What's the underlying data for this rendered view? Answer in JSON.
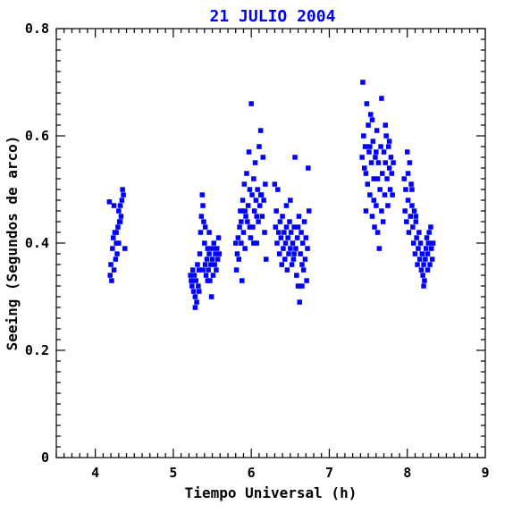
{
  "chart_data": {
    "type": "scatter",
    "title": "21 JULIO 2004",
    "xlabel": "Tiempo Universal (h)",
    "ylabel": "Seeing (Segundos de arco)",
    "xlim": [
      3.5,
      9
    ],
    "ylim": [
      0,
      0.8
    ],
    "x_ticks": [
      {
        "value": 4,
        "label": "4"
      },
      {
        "value": 5,
        "label": "5"
      },
      {
        "value": 6,
        "label": "6"
      },
      {
        "value": 7,
        "label": "7"
      },
      {
        "value": 8,
        "label": "8"
      },
      {
        "value": 9,
        "label": "9"
      }
    ],
    "y_ticks": [
      {
        "value": 0,
        "label": "0"
      },
      {
        "value": 0.2,
        "label": "0.2"
      },
      {
        "value": 0.4,
        "label": "0.4"
      },
      {
        "value": 0.6,
        "label": "0.6"
      },
      {
        "value": 0.8,
        "label": "0.8"
      }
    ],
    "grid": false,
    "marker_color": "#0000ff",
    "title_color": "#0000ff",
    "points": [
      [
        4.18,
        0.477
      ],
      [
        4.19,
        0.34
      ],
      [
        4.2,
        0.36
      ],
      [
        4.21,
        0.33
      ],
      [
        4.22,
        0.39
      ],
      [
        4.23,
        0.41
      ],
      [
        4.24,
        0.35
      ],
      [
        4.25,
        0.42
      ],
      [
        4.26,
        0.37
      ],
      [
        4.27,
        0.4
      ],
      [
        4.28,
        0.38
      ],
      [
        4.29,
        0.43
      ],
      [
        4.3,
        0.46
      ],
      [
        4.31,
        0.44
      ],
      [
        4.32,
        0.47
      ],
      [
        4.33,
        0.45
      ],
      [
        4.34,
        0.48
      ],
      [
        4.35,
        0.5
      ],
      [
        4.36,
        0.49
      ],
      [
        4.38,
        0.39
      ],
      [
        4.24,
        0.47
      ],
      [
        4.27,
        0.42
      ],
      [
        4.3,
        0.4
      ],
      [
        4.32,
        0.44
      ],
      [
        5.22,
        0.34
      ],
      [
        5.23,
        0.33
      ],
      [
        5.24,
        0.32
      ],
      [
        5.25,
        0.35
      ],
      [
        5.26,
        0.31
      ],
      [
        5.27,
        0.34
      ],
      [
        5.28,
        0.28
      ],
      [
        5.29,
        0.33
      ],
      [
        5.3,
        0.29
      ],
      [
        5.31,
        0.36
      ],
      [
        5.32,
        0.32
      ],
      [
        5.33,
        0.35
      ],
      [
        5.34,
        0.38
      ],
      [
        5.35,
        0.42
      ],
      [
        5.36,
        0.45
      ],
      [
        5.37,
        0.49
      ],
      [
        5.38,
        0.47
      ],
      [
        5.39,
        0.44
      ],
      [
        5.4,
        0.4
      ],
      [
        5.41,
        0.36
      ],
      [
        5.42,
        0.34
      ],
      [
        5.43,
        0.37
      ],
      [
        5.44,
        0.39
      ],
      [
        5.45,
        0.35
      ],
      [
        5.46,
        0.38
      ],
      [
        5.47,
        0.33
      ],
      [
        5.48,
        0.36
      ],
      [
        5.49,
        0.3
      ],
      [
        5.5,
        0.37
      ],
      [
        5.51,
        0.34
      ],
      [
        5.52,
        0.4
      ],
      [
        5.53,
        0.36
      ],
      [
        5.54,
        0.38
      ],
      [
        5.55,
        0.35
      ],
      [
        5.56,
        0.39
      ],
      [
        5.57,
        0.37
      ],
      [
        5.58,
        0.41
      ],
      [
        5.59,
        0.38
      ],
      [
        5.28,
        0.3
      ],
      [
        5.33,
        0.31
      ],
      [
        5.38,
        0.35
      ],
      [
        5.44,
        0.33
      ],
      [
        5.5,
        0.39
      ],
      [
        5.46,
        0.42
      ],
      [
        5.41,
        0.43
      ],
      [
        5.8,
        0.4
      ],
      [
        5.81,
        0.35
      ],
      [
        5.82,
        0.38
      ],
      [
        5.83,
        0.41
      ],
      [
        5.84,
        0.37
      ],
      [
        5.85,
        0.43
      ],
      [
        5.86,
        0.46
      ],
      [
        5.87,
        0.4
      ],
      [
        5.88,
        0.33
      ],
      [
        5.89,
        0.48
      ],
      [
        5.9,
        0.42
      ],
      [
        5.91,
        0.51
      ],
      [
        5.92,
        0.39
      ],
      [
        5.93,
        0.45
      ],
      [
        5.94,
        0.53
      ],
      [
        5.95,
        0.44
      ],
      [
        5.96,
        0.47
      ],
      [
        5.97,
        0.57
      ],
      [
        5.98,
        0.5
      ],
      [
        5.99,
        0.41
      ],
      [
        6.0,
        0.66
      ],
      [
        6.01,
        0.49
      ],
      [
        6.02,
        0.43
      ],
      [
        6.03,
        0.52
      ],
      [
        6.04,
        0.46
      ],
      [
        6.05,
        0.55
      ],
      [
        6.06,
        0.48
      ],
      [
        6.07,
        0.4
      ],
      [
        6.08,
        0.5
      ],
      [
        6.09,
        0.44
      ],
      [
        6.1,
        0.58
      ],
      [
        6.11,
        0.47
      ],
      [
        6.12,
        0.61
      ],
      [
        6.13,
        0.49
      ],
      [
        6.14,
        0.45
      ],
      [
        6.15,
        0.56
      ],
      [
        6.16,
        0.48
      ],
      [
        6.17,
        0.42
      ],
      [
        6.18,
        0.51
      ],
      [
        6.19,
        0.37
      ],
      [
        5.92,
        0.46
      ],
      [
        5.98,
        0.43
      ],
      [
        6.03,
        0.4
      ],
      [
        6.07,
        0.45
      ],
      [
        6.12,
        0.49
      ],
      [
        5.87,
        0.44
      ],
      [
        6.3,
        0.51
      ],
      [
        6.31,
        0.43
      ],
      [
        6.32,
        0.46
      ],
      [
        6.33,
        0.4
      ],
      [
        6.34,
        0.5
      ],
      [
        6.35,
        0.42
      ],
      [
        6.36,
        0.38
      ],
      [
        6.37,
        0.44
      ],
      [
        6.38,
        0.41
      ],
      [
        6.39,
        0.36
      ],
      [
        6.4,
        0.45
      ],
      [
        6.41,
        0.39
      ],
      [
        6.42,
        0.42
      ],
      [
        6.43,
        0.37
      ],
      [
        6.44,
        0.4
      ],
      [
        6.45,
        0.43
      ],
      [
        6.46,
        0.35
      ],
      [
        6.47,
        0.41
      ],
      [
        6.48,
        0.38
      ],
      [
        6.49,
        0.44
      ],
      [
        6.5,
        0.39
      ],
      [
        6.51,
        0.42
      ],
      [
        6.52,
        0.36
      ],
      [
        6.53,
        0.4
      ],
      [
        6.54,
        0.37
      ],
      [
        6.55,
        0.43
      ],
      [
        6.56,
        0.56
      ],
      [
        6.57,
        0.39
      ],
      [
        6.58,
        0.34
      ],
      [
        6.59,
        0.41
      ],
      [
        6.6,
        0.32
      ],
      [
        6.61,
        0.45
      ],
      [
        6.62,
        0.29
      ],
      [
        6.63,
        0.38
      ],
      [
        6.64,
        0.42
      ],
      [
        6.65,
        0.36
      ],
      [
        6.66,
        0.4
      ],
      [
        6.67,
        0.35
      ],
      [
        6.68,
        0.44
      ],
      [
        6.69,
        0.37
      ],
      [
        6.7,
        0.41
      ],
      [
        6.71,
        0.33
      ],
      [
        6.72,
        0.39
      ],
      [
        6.73,
        0.54
      ],
      [
        6.74,
        0.46
      ],
      [
        6.45,
        0.47
      ],
      [
        6.55,
        0.38
      ],
      [
        6.6,
        0.43
      ],
      [
        6.65,
        0.32
      ],
      [
        6.5,
        0.48
      ],
      [
        7.42,
        0.56
      ],
      [
        7.43,
        0.7
      ],
      [
        7.44,
        0.6
      ],
      [
        7.45,
        0.54
      ],
      [
        7.46,
        0.58
      ],
      [
        7.47,
        0.46
      ],
      [
        7.48,
        0.66
      ],
      [
        7.49,
        0.51
      ],
      [
        7.5,
        0.62
      ],
      [
        7.51,
        0.57
      ],
      [
        7.52,
        0.49
      ],
      [
        7.53,
        0.64
      ],
      [
        7.54,
        0.55
      ],
      [
        7.55,
        0.45
      ],
      [
        7.56,
        0.59
      ],
      [
        7.57,
        0.52
      ],
      [
        7.58,
        0.43
      ],
      [
        7.59,
        0.56
      ],
      [
        7.6,
        0.47
      ],
      [
        7.61,
        0.61
      ],
      [
        7.62,
        0.42
      ],
      [
        7.63,
        0.55
      ],
      [
        7.64,
        0.39
      ],
      [
        7.65,
        0.5
      ],
      [
        7.66,
        0.58
      ],
      [
        7.67,
        0.67
      ],
      [
        7.68,
        0.53
      ],
      [
        7.69,
        0.44
      ],
      [
        7.7,
        0.57
      ],
      [
        7.71,
        0.49
      ],
      [
        7.72,
        0.55
      ],
      [
        7.73,
        0.6
      ],
      [
        7.74,
        0.52
      ],
      [
        7.75,
        0.47
      ],
      [
        7.76,
        0.58
      ],
      [
        7.77,
        0.54
      ],
      [
        7.78,
        0.5
      ],
      [
        7.79,
        0.56
      ],
      [
        7.8,
        0.53
      ],
      [
        7.81,
        0.49
      ],
      [
        7.47,
        0.53
      ],
      [
        7.52,
        0.58
      ],
      [
        7.57,
        0.48
      ],
      [
        7.62,
        0.52
      ],
      [
        7.67,
        0.46
      ],
      [
        7.72,
        0.62
      ],
      [
        7.77,
        0.59
      ],
      [
        7.82,
        0.55
      ],
      [
        7.55,
        0.63
      ],
      [
        7.6,
        0.57
      ],
      [
        7.96,
        0.52
      ],
      [
        7.97,
        0.46
      ],
      [
        7.98,
        0.5
      ],
      [
        7.99,
        0.44
      ],
      [
        8.0,
        0.57
      ],
      [
        8.01,
        0.48
      ],
      [
        8.02,
        0.42
      ],
      [
        8.03,
        0.55
      ],
      [
        8.04,
        0.45
      ],
      [
        8.05,
        0.51
      ],
      [
        8.06,
        0.47
      ],
      [
        8.07,
        0.43
      ],
      [
        8.08,
        0.4
      ],
      [
        8.09,
        0.46
      ],
      [
        8.1,
        0.38
      ],
      [
        8.11,
        0.44
      ],
      [
        8.12,
        0.41
      ],
      [
        8.13,
        0.36
      ],
      [
        8.14,
        0.39
      ],
      [
        8.15,
        0.42
      ],
      [
        8.16,
        0.37
      ],
      [
        8.17,
        0.4
      ],
      [
        8.18,
        0.35
      ],
      [
        8.19,
        0.38
      ],
      [
        8.2,
        0.34
      ],
      [
        8.21,
        0.36
      ],
      [
        8.22,
        0.33
      ],
      [
        8.23,
        0.37
      ],
      [
        8.24,
        0.39
      ],
      [
        8.25,
        0.41
      ],
      [
        8.26,
        0.38
      ],
      [
        8.27,
        0.4
      ],
      [
        8.28,
        0.42
      ],
      [
        8.29,
        0.36
      ],
      [
        8.3,
        0.43
      ],
      [
        8.31,
        0.39
      ],
      [
        8.32,
        0.37
      ],
      [
        8.33,
        0.4
      ],
      [
        8.01,
        0.53
      ],
      [
        8.06,
        0.5
      ],
      [
        8.11,
        0.45
      ],
      [
        8.21,
        0.32
      ],
      [
        8.26,
        0.35
      ]
    ]
  }
}
